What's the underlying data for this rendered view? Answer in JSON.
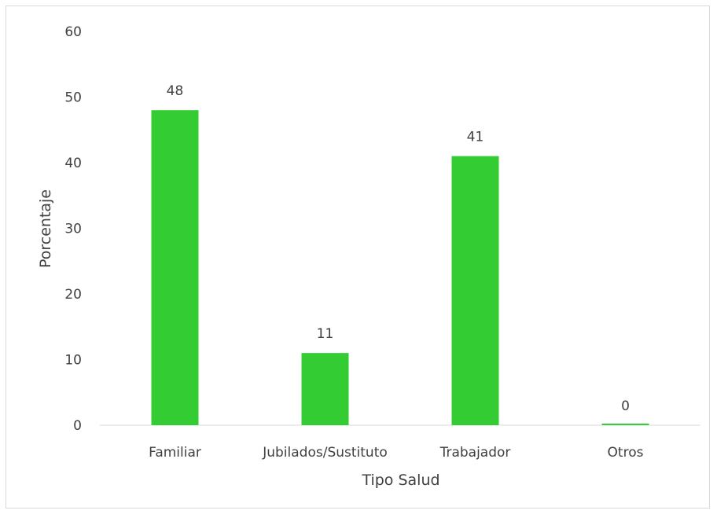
{
  "chart_data": {
    "type": "bar",
    "categories": [
      "Familiar",
      "Jubilados/Sustituto",
      "Trabajador",
      "Otros"
    ],
    "values": [
      48,
      11,
      41,
      0
    ],
    "data_labels": [
      "48",
      "11",
      "41",
      "0"
    ],
    "title": "",
    "xlabel": "Tipo Salud",
    "ylabel": "Porcentaje",
    "ylim": [
      0,
      60
    ],
    "yticks": [
      0,
      10,
      20,
      30,
      40,
      50,
      60
    ],
    "grid": false,
    "legend": "none",
    "bar_color": "#33cc33",
    "axis_color": "#d9d9d9",
    "text_color": "#404040"
  }
}
